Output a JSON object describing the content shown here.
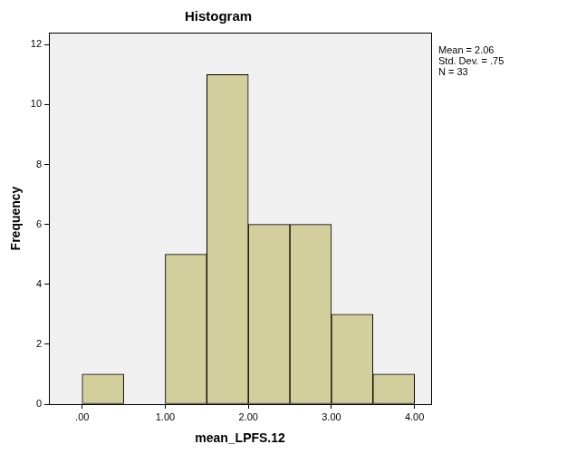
{
  "chart_data": {
    "type": "histogram",
    "title": "Histogram",
    "x_label": "mean_LPFS.12",
    "y_label": "Frequency",
    "bins": [
      0,
      0.5,
      1,
      1.5,
      2,
      2.5,
      3,
      3.5,
      4
    ],
    "values": [
      1,
      0,
      5,
      11,
      6,
      6,
      3,
      1
    ],
    "color": "#d3cf9c",
    "xlim": [
      -0.4,
      4.2
    ],
    "xticks": [
      {
        "value": 0,
        "label": ".00"
      },
      {
        "value": 1,
        "label": "1.00"
      },
      {
        "value": 2,
        "label": "2.00"
      },
      {
        "value": 3,
        "label": "3.00"
      },
      {
        "value": 4,
        "label": "4.00"
      }
    ],
    "ylim": [
      0,
      12.4
    ],
    "yticks": [
      0,
      2,
      4,
      6,
      8,
      10,
      12
    ],
    "grid": false,
    "annotations": [
      "Mean = 2.06",
      "Std. Dev. = .75",
      "N = 33"
    ]
  }
}
